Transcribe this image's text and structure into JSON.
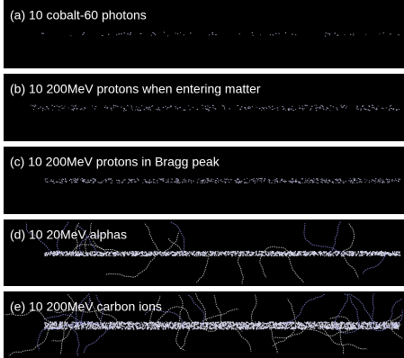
{
  "panels": [
    {
      "label": "(a) 10 cobalt-60 photons"
    },
    {
      "label": "(b) 10 200MeV protons when entering matter"
    },
    {
      "label": "(c) 10 200MeV protons in Bragg peak"
    },
    {
      "label": "(d) 10 20MeV alphas"
    },
    {
      "label": "(e) 10 200MeV carbon ions"
    }
  ]
}
